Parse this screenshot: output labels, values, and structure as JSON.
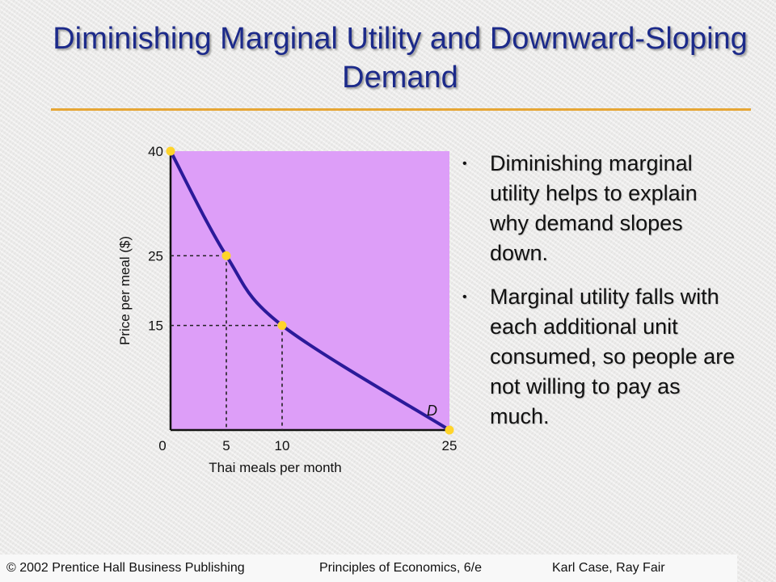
{
  "slide": {
    "title": "Diminishing Marginal Utility and Downward-Sloping Demand",
    "accent_color": "#e6a635",
    "title_color": "#1c2a8a"
  },
  "bullets": [
    "Diminishing marginal utility helps to explain why demand slopes down.",
    "Marginal utility falls with each additional unit consumed, so people are not willing to pay as much."
  ],
  "footer": {
    "left": "© 2002 Prentice Hall Business Publishing",
    "center": "Principles of Economics, 6/e",
    "right": "Karl Case, Ray Fair"
  },
  "chart_data": {
    "type": "line",
    "xlabel": "Thai meals per month",
    "ylabel": "Price per meal ($)",
    "x_ticks": [
      0,
      5,
      10,
      25
    ],
    "y_ticks": [
      15,
      25,
      40
    ],
    "xlim": [
      0,
      25
    ],
    "ylim": [
      0,
      40
    ],
    "series": [
      {
        "name": "D",
        "points": [
          [
            0,
            40
          ],
          [
            5,
            25
          ],
          [
            10,
            15
          ],
          [
            25,
            0
          ]
        ]
      }
    ],
    "highlight_points": [
      [
        0,
        40
      ],
      [
        5,
        25
      ],
      [
        10,
        15
      ],
      [
        25,
        0
      ]
    ],
    "guides": [
      [
        5,
        25
      ],
      [
        10,
        15
      ]
    ],
    "plot_color": "#dd9ef8",
    "curve_color": "#2b1a9a",
    "point_color": "#ffd42a"
  }
}
